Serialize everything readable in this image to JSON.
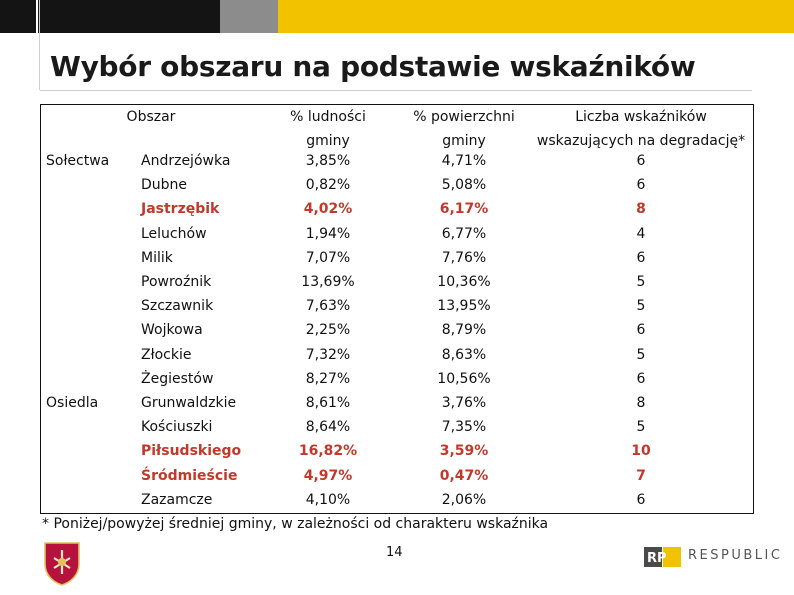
{
  "slide": {
    "title": "Wybór obszaru na podstawie wskaźników",
    "footnote": "* Poniżej/powyżej średniej gminy, w zależności od charakteru wskaźnika",
    "page_number": "14",
    "logo_text": "RESPUBLIC",
    "logo_mark": "RP"
  },
  "colors": {
    "accent_yellow": "#f2c200",
    "highlight_red": "#c0392b"
  },
  "table": {
    "headers": {
      "area": "Obszar",
      "pct_population_l1": "% ludności",
      "pct_population_l2": "gminy",
      "pct_area_l1": "% powierzchni",
      "pct_area_l2": "gminy",
      "count_l1": "Liczba wskaźników",
      "count_l2": "wskazujących na degradację*"
    },
    "groups": [
      "Sołectwa",
      "Osiedla"
    ],
    "rows": [
      {
        "name": "Andrzejówka",
        "pct_population": "3,85%",
        "pct_area": "4,71%",
        "count": "6"
      },
      {
        "name": "Dubne",
        "pct_population": "0,82%",
        "pct_area": "5,08%",
        "count": "6"
      },
      {
        "name": "Jastrzębik",
        "pct_population": "4,02%",
        "pct_area": "6,17%",
        "count": "8"
      },
      {
        "name": "Leluchów",
        "pct_population": "1,94%",
        "pct_area": "6,77%",
        "count": "4"
      },
      {
        "name": "Milik",
        "pct_population": "7,07%",
        "pct_area": "7,76%",
        "count": "6"
      },
      {
        "name": "Powroźnik",
        "pct_population": "13,69%",
        "pct_area": "10,36%",
        "count": "5"
      },
      {
        "name": "Szczawnik",
        "pct_population": "7,63%",
        "pct_area": "13,95%",
        "count": "5"
      },
      {
        "name": "Wojkowa",
        "pct_population": "2,25%",
        "pct_area": "8,79%",
        "count": "6"
      },
      {
        "name": "Złockie",
        "pct_population": "7,32%",
        "pct_area": "8,63%",
        "count": "5"
      },
      {
        "name": "Żegiestów",
        "pct_population": "8,27%",
        "pct_area": "10,56%",
        "count": "6"
      },
      {
        "name": "Grunwaldzkie",
        "pct_population": "8,61%",
        "pct_area": "3,76%",
        "count": "8"
      },
      {
        "name": "Kościuszki",
        "pct_population": "8,64%",
        "pct_area": "7,35%",
        "count": "5"
      },
      {
        "name": "Piłsudskiego",
        "pct_population": "16,82%",
        "pct_area": "3,59%",
        "count": "10"
      },
      {
        "name": "Śródmieście",
        "pct_population": "4,97%",
        "pct_area": "0,47%",
        "count": "7"
      },
      {
        "name": "Zazamcze",
        "pct_population": "4,10%",
        "pct_area": "2,06%",
        "count": "6"
      }
    ]
  }
}
